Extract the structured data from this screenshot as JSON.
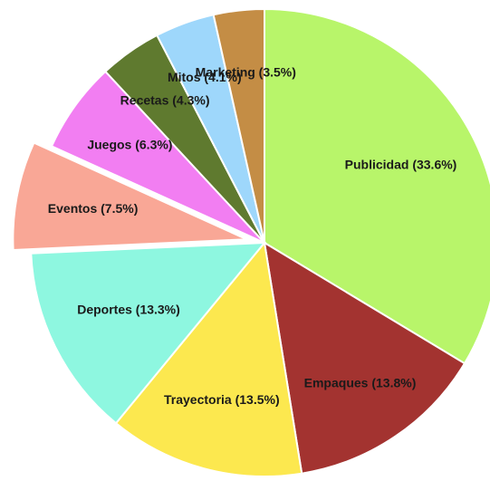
{
  "chart_data": {
    "type": "pie",
    "title": "",
    "slices": [
      {
        "label": "Publicidad (33.6%)",
        "name": "Publicidad",
        "value": 33.6,
        "color": "#b8f56a"
      },
      {
        "label": "Empaques (13.8%)",
        "name": "Empaques",
        "value": 13.8,
        "color": "#a33330"
      },
      {
        "label": "Trayectoria (13.5%)",
        "name": "Trayectoria",
        "value": 13.5,
        "color": "#fce84f"
      },
      {
        "label": "Deportes (13.3%)",
        "name": "Deportes",
        "value": 13.3,
        "color": "#8ef7e0"
      },
      {
        "label": "Eventos (7.5%)",
        "name": "Eventos",
        "value": 7.5,
        "color": "#f9a796",
        "exploded": true
      },
      {
        "label": "Juegos (6.3%)",
        "name": "Juegos",
        "value": 6.3,
        "color": "#f27ef2"
      },
      {
        "label": "Recetas (4.3%)",
        "name": "Recetas",
        "value": 4.3,
        "color": "#5f7a2f"
      },
      {
        "label": "Mitos (4.1%)",
        "name": "Mitos",
        "value": 4.1,
        "color": "#9ed7fb"
      },
      {
        "label": "Marketing (3.5%)",
        "name": "Marketing",
        "value": 3.5,
        "color": "#c48d45"
      }
    ]
  }
}
